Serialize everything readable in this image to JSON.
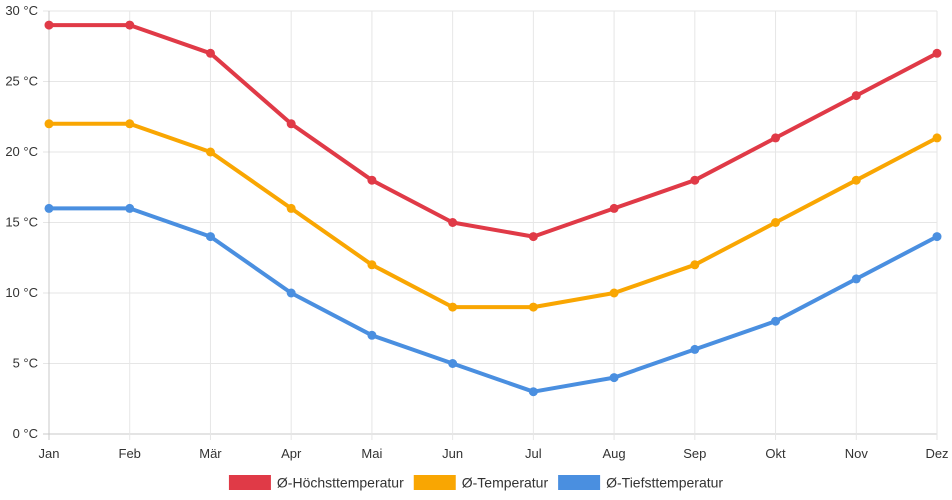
{
  "chart_data": {
    "type": "line",
    "title": "",
    "xlabel": "",
    "ylabel": "",
    "categories": [
      "Jan",
      "Feb",
      "Mär",
      "Apr",
      "Mai",
      "Jun",
      "Jul",
      "Aug",
      "Sep",
      "Okt",
      "Nov",
      "Dez"
    ],
    "ylim": [
      0,
      30
    ],
    "y_ticks": [
      0,
      5,
      10,
      15,
      20,
      25,
      30
    ],
    "y_unit": "°C",
    "y_tick_labels": [
      "0 °C",
      "5 °C",
      "10 °C",
      "15 °C",
      "20 °C",
      "25 °C",
      "30 °C"
    ],
    "grid": true,
    "legend_position": "bottom-center",
    "series": [
      {
        "name": "Ø-Höchsttemperatur",
        "color": "#e03a47",
        "values": [
          29,
          29,
          27,
          22,
          18,
          15,
          14,
          16,
          18,
          21,
          24,
          27
        ]
      },
      {
        "name": "Ø-Temperatur",
        "color": "#f9a602",
        "values": [
          22,
          22,
          20,
          16,
          12,
          9,
          9,
          10,
          12,
          15,
          18,
          21
        ]
      },
      {
        "name": "Ø-Tiefsttemperatur",
        "color": "#4a8fe0",
        "values": [
          16,
          16,
          14,
          10,
          7,
          5,
          3,
          4,
          6,
          8,
          11,
          14
        ]
      }
    ]
  }
}
